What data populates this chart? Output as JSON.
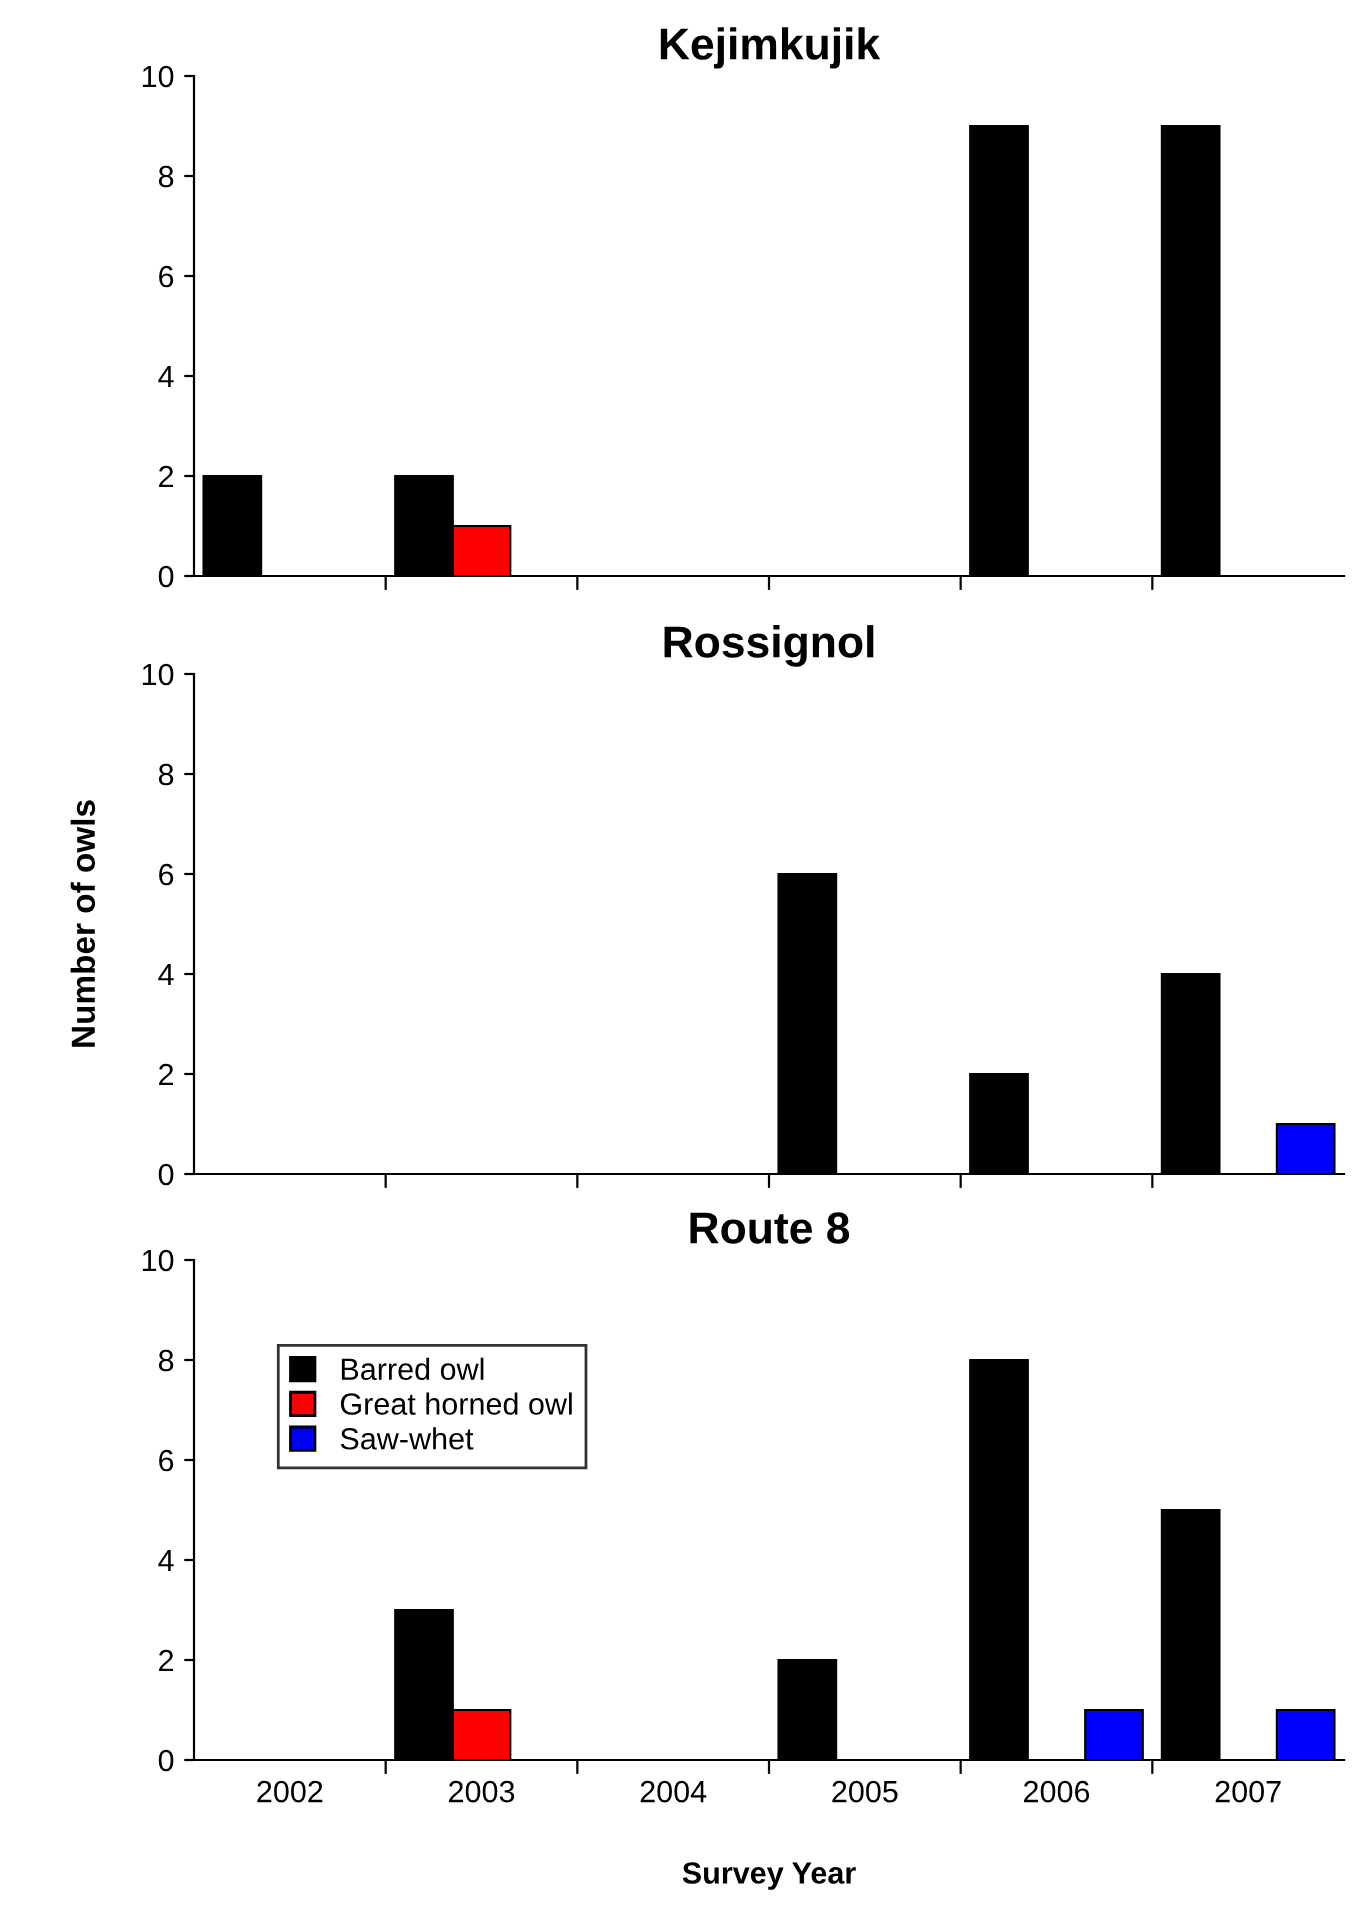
{
  "chart_data": [
    {
      "type": "bar",
      "title": "Kejimkujik",
      "categories": [
        "2002",
        "2003",
        "2004",
        "2005",
        "2006",
        "2007"
      ],
      "ylim": [
        0,
        10
      ],
      "yticks": [
        0,
        2,
        4,
        6,
        8,
        10
      ],
      "tick_labels": "y",
      "grid": false,
      "legend": false,
      "series": [
        {
          "color": "#000000",
          "values": [
            2,
            2,
            0,
            0,
            9,
            9
          ]
        },
        {
          "color": "#ff0000",
          "values": [
            0,
            1,
            0,
            0,
            0,
            0
          ]
        },
        {
          "color": "#0000ff",
          "values": [
            0,
            0,
            0,
            0,
            0,
            0
          ]
        }
      ]
    },
    {
      "type": "bar",
      "title": "Rossignol",
      "ylabel": "Number of owls",
      "categories": [
        "2002",
        "2003",
        "2004",
        "2005",
        "2006",
        "2007"
      ],
      "ylim": [
        0,
        10
      ],
      "yticks": [
        0,
        2,
        4,
        6,
        8,
        10
      ],
      "tick_labels": "y",
      "grid": false,
      "legend": false,
      "series": [
        {
          "color": "#000000",
          "values": [
            0,
            0,
            0,
            6,
            2,
            4
          ]
        },
        {
          "color": "#ff0000",
          "values": [
            0,
            0,
            0,
            0,
            0,
            0
          ]
        },
        {
          "color": "#0000ff",
          "values": [
            0,
            0,
            0,
            0,
            0,
            1
          ]
        }
      ]
    },
    {
      "type": "bar",
      "title": "Route 8",
      "xlabel": "Survey Year",
      "categories": [
        "2002",
        "2003",
        "2004",
        "2005",
        "2006",
        "2007"
      ],
      "ylim": [
        0,
        10
      ],
      "yticks": [
        0,
        2,
        4,
        6,
        8,
        10
      ],
      "grid": false,
      "legend": "top left",
      "series": [
        {
          "name": "Barred owl",
          "color": "#000000",
          "values": [
            0,
            3,
            0,
            2,
            8,
            5
          ]
        },
        {
          "name": "Great horned owl",
          "color": "#ff0000",
          "values": [
            0,
            1,
            0,
            0,
            0,
            0
          ]
        },
        {
          "name": "Saw-whet",
          "color": "#0000ff",
          "values": [
            0,
            0,
            0,
            0,
            1,
            1
          ]
        }
      ]
    }
  ]
}
